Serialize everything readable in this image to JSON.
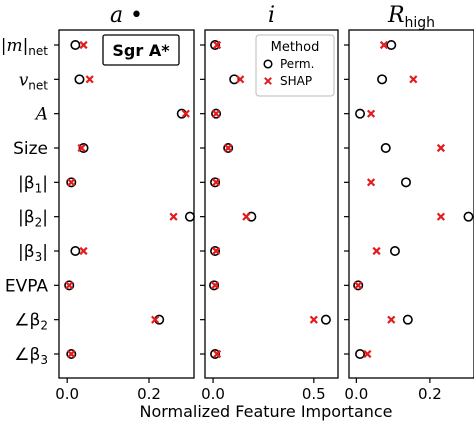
{
  "chart_data": {
    "type": "scatter",
    "xlabel": "Normalized Feature Importance",
    "features": [
      "|m|net",
      "vnet",
      "A",
      "Size",
      "|β1|",
      "|β2|",
      "|β3|",
      "EVPA",
      "∠β2",
      "∠β3"
    ],
    "legend": {
      "title": "Method",
      "entries": [
        {
          "label": "Perm.",
          "marker": "circle",
          "color": "#000000"
        },
        {
          "label": "SHAP",
          "marker": "x",
          "color": "#e41a1c"
        }
      ],
      "placement": "top-right of second panel"
    },
    "annotation": "Sgr A*",
    "panels": [
      {
        "title": "a•",
        "xlim": [
          -0.02,
          0.31
        ],
        "xticks": [
          0.0,
          0.2
        ],
        "series": [
          {
            "name": "Perm.",
            "values": [
              0.02,
              0.03,
              0.28,
              0.04,
              0.01,
              0.3,
              0.02,
              0.005,
              0.225,
              0.01
            ]
          },
          {
            "name": "SHAP",
            "values": [
              0.04,
              0.055,
              0.29,
              0.035,
              0.01,
              0.26,
              0.04,
              0.005,
              0.215,
              0.01
            ]
          }
        ]
      },
      {
        "title": "i",
        "xlim": [
          -0.04,
          0.62
        ],
        "xticks": [
          0.0,
          0.5
        ],
        "series": [
          {
            "name": "Perm.",
            "values": [
              0.01,
              0.105,
              0.015,
              0.075,
              0.01,
              0.19,
              0.01,
              0.005,
              0.56,
              0.01
            ]
          },
          {
            "name": "SHAP",
            "values": [
              0.02,
              0.135,
              0.015,
              0.075,
              0.015,
              0.165,
              0.015,
              0.01,
              0.5,
              0.02
            ]
          }
        ]
      },
      {
        "title": "R_high",
        "xlim": [
          -0.02,
          0.32
        ],
        "xticks": [
          0.0,
          0.2
        ],
        "series": [
          {
            "name": "Perm.",
            "values": [
              0.095,
              0.07,
              0.01,
              0.08,
              0.135,
              0.305,
              0.105,
              0.005,
              0.14,
              0.01
            ]
          },
          {
            "name": "SHAP",
            "values": [
              0.075,
              0.155,
              0.04,
              0.23,
              0.04,
              0.23,
              0.055,
              0.005,
              0.095,
              0.03
            ]
          }
        ]
      }
    ]
  }
}
